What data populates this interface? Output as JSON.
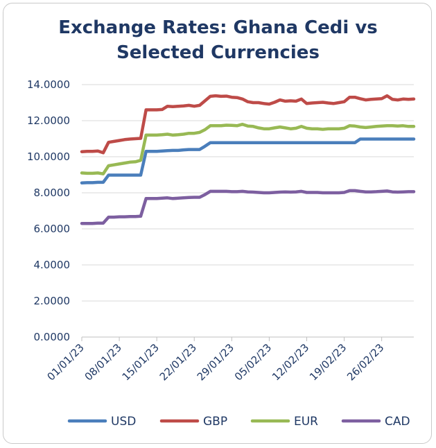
{
  "chart_data": {
    "type": "line",
    "title_line1": "Exchange Rates: Ghana Cedi vs",
    "title_line2": "Selected Currencies",
    "xlabel": "",
    "ylabel": "",
    "ylim": [
      0,
      14
    ],
    "yticks": [
      "0.0000",
      "2.0000",
      "4.0000",
      "6.0000",
      "8.0000",
      "10.0000",
      "12.0000",
      "14.0000"
    ],
    "xticks": [
      {
        "day": 0,
        "label": "01/01/23"
      },
      {
        "day": 7,
        "label": "08/01/23"
      },
      {
        "day": 14,
        "label": "15/01/23"
      },
      {
        "day": 21,
        "label": "22/01/23"
      },
      {
        "day": 28,
        "label": "29/01/23"
      },
      {
        "day": 35,
        "label": "05/02/23"
      },
      {
        "day": 42,
        "label": "12/02/23"
      },
      {
        "day": 49,
        "label": "19/02/23"
      },
      {
        "day": 56,
        "label": "26/02/23"
      }
    ],
    "x_days": [
      0,
      1,
      2,
      3,
      4,
      5,
      6,
      7,
      8,
      9,
      10,
      11,
      12,
      13,
      14,
      15,
      16,
      17,
      18,
      19,
      20,
      21,
      22,
      23,
      24,
      25,
      26,
      27,
      28,
      29,
      30,
      31,
      32,
      33,
      34,
      35,
      36,
      37,
      38,
      39,
      40,
      41,
      42,
      43,
      44,
      45,
      46,
      47,
      48,
      49,
      50,
      51,
      52,
      53,
      54,
      55,
      56,
      57,
      58,
      59,
      60,
      61,
      62
    ],
    "series": [
      {
        "name": "USD",
        "color": "#4a7ebb",
        "values": [
          8.55,
          8.56,
          8.56,
          8.58,
          8.58,
          8.98,
          8.98,
          8.98,
          8.98,
          8.98,
          8.98,
          8.98,
          10.3,
          10.3,
          10.3,
          10.32,
          10.34,
          10.35,
          10.35,
          10.38,
          10.4,
          10.4,
          10.4,
          10.58,
          10.78,
          10.78,
          10.78,
          10.78,
          10.78,
          10.78,
          10.78,
          10.78,
          10.78,
          10.78,
          10.78,
          10.78,
          10.78,
          10.78,
          10.78,
          10.78,
          10.78,
          10.78,
          10.78,
          10.78,
          10.78,
          10.78,
          10.78,
          10.78,
          10.78,
          10.78,
          10.78,
          10.78,
          10.98,
          10.98,
          10.98,
          10.98,
          10.98,
          10.98,
          10.98,
          10.98,
          10.98,
          10.98,
          10.98
        ]
      },
      {
        "name": "GBP",
        "color": "#be4b48",
        "values": [
          10.28,
          10.3,
          10.3,
          10.32,
          10.22,
          10.8,
          10.85,
          10.9,
          10.95,
          10.98,
          11.0,
          11.02,
          12.6,
          12.6,
          12.6,
          12.62,
          12.8,
          12.78,
          12.8,
          12.82,
          12.85,
          12.8,
          12.85,
          13.1,
          13.35,
          13.38,
          13.35,
          13.36,
          13.3,
          13.28,
          13.2,
          13.05,
          13.0,
          13.0,
          12.95,
          12.92,
          13.02,
          13.15,
          13.08,
          13.1,
          13.08,
          13.2,
          12.95,
          12.98,
          13.0,
          13.02,
          12.98,
          12.95,
          13.0,
          13.05,
          13.3,
          13.3,
          13.22,
          13.15,
          13.18,
          13.2,
          13.22,
          13.38,
          13.18,
          13.15,
          13.2,
          13.18,
          13.2
        ]
      },
      {
        "name": "EUR",
        "color": "#98b954",
        "values": [
          9.1,
          9.08,
          9.08,
          9.1,
          9.05,
          9.5,
          9.55,
          9.6,
          9.65,
          9.7,
          9.72,
          9.8,
          11.2,
          11.2,
          11.2,
          11.22,
          11.25,
          11.2,
          11.22,
          11.25,
          11.3,
          11.3,
          11.35,
          11.5,
          11.72,
          11.72,
          11.72,
          11.75,
          11.74,
          11.72,
          11.8,
          11.7,
          11.68,
          11.6,
          11.55,
          11.55,
          11.6,
          11.65,
          11.6,
          11.55,
          11.58,
          11.68,
          11.58,
          11.55,
          11.55,
          11.52,
          11.55,
          11.55,
          11.55,
          11.58,
          11.72,
          11.7,
          11.65,
          11.62,
          11.65,
          11.68,
          11.7,
          11.72,
          11.72,
          11.7,
          11.72,
          11.68,
          11.68
        ]
      },
      {
        "name": "CAD",
        "color": "#7d5fa0",
        "values": [
          6.3,
          6.3,
          6.3,
          6.32,
          6.32,
          6.65,
          6.65,
          6.67,
          6.67,
          6.68,
          6.68,
          6.7,
          7.68,
          7.68,
          7.68,
          7.7,
          7.72,
          7.68,
          7.7,
          7.72,
          7.74,
          7.75,
          7.75,
          7.9,
          8.08,
          8.08,
          8.08,
          8.08,
          8.06,
          8.06,
          8.08,
          8.05,
          8.04,
          8.02,
          8.0,
          8.0,
          8.02,
          8.04,
          8.05,
          8.04,
          8.05,
          8.08,
          8.02,
          8.02,
          8.02,
          8.0,
          8.0,
          8.0,
          8.0,
          8.02,
          8.12,
          8.12,
          8.08,
          8.05,
          8.05,
          8.06,
          8.08,
          8.1,
          8.05,
          8.04,
          8.05,
          8.06,
          8.06
        ]
      }
    ],
    "legend_position": "bottom"
  }
}
